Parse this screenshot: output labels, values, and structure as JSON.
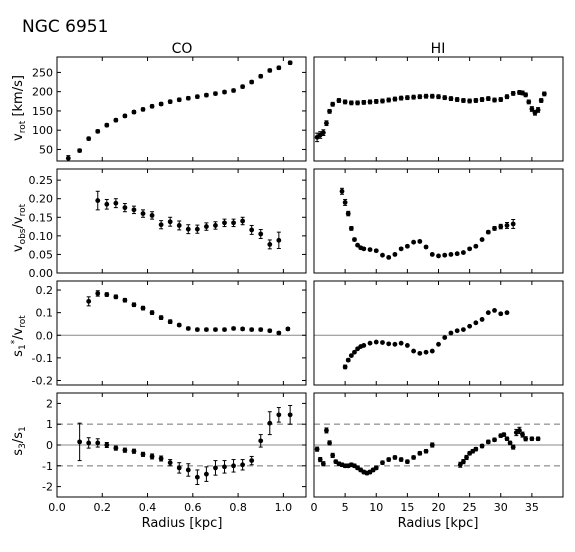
{
  "figure": {
    "title": "NGC 6951",
    "columns": [
      "CO",
      "HI"
    ],
    "xlabel": "Radius [kpc]"
  },
  "chart_data": [
    {
      "type": "scatter",
      "panel": "CO",
      "row": 0,
      "ylabel": "v_rot [km/s]",
      "xlim": [
        0,
        1.1
      ],
      "ylim": [
        20,
        290
      ],
      "xticks": [],
      "yticks": [
        50,
        100,
        150,
        200,
        250
      ],
      "x": [
        0.05,
        0.1,
        0.14,
        0.18,
        0.22,
        0.26,
        0.3,
        0.34,
        0.38,
        0.42,
        0.46,
        0.5,
        0.54,
        0.58,
        0.62,
        0.66,
        0.7,
        0.74,
        0.78,
        0.82,
        0.86,
        0.9,
        0.94,
        0.98,
        1.03
      ],
      "y": [
        27,
        47,
        78,
        97,
        113,
        126,
        137,
        147,
        154,
        162,
        168,
        174,
        179,
        183,
        187,
        191,
        195,
        199,
        203,
        213,
        225,
        240,
        255,
        262,
        275
      ],
      "yerr": [
        7,
        4,
        4,
        4,
        4,
        4,
        4,
        4,
        4,
        4,
        4,
        4,
        4,
        4,
        4,
        4,
        4,
        4,
        4,
        4,
        4,
        4,
        4,
        4,
        4
      ],
      "refs": []
    },
    {
      "type": "scatter",
      "panel": "HI",
      "row": 0,
      "xlim": [
        0,
        40
      ],
      "ylim": [
        70,
        290
      ],
      "xticks": [],
      "yticks": [],
      "x": [
        0.5,
        1,
        1.5,
        2,
        2.5,
        3,
        4,
        5,
        6,
        7,
        8,
        9,
        10,
        11,
        12,
        13,
        14,
        15,
        16,
        17,
        18,
        19,
        20,
        21,
        22,
        23,
        24,
        25,
        26,
        27,
        28,
        29,
        30,
        31,
        32,
        33,
        33.5,
        34,
        34.5,
        35,
        35.5,
        36,
        36.5,
        37
      ],
      "y": [
        120,
        125,
        130,
        150,
        175,
        190,
        198,
        195,
        193,
        193,
        194,
        195,
        196,
        197,
        199,
        201,
        203,
        204,
        205,
        206,
        207,
        207,
        206,
        204,
        202,
        200,
        198,
        197,
        198,
        200,
        202,
        199,
        200,
        206,
        213,
        215,
        214,
        210,
        195,
        180,
        172,
        178,
        198,
        212
      ],
      "yerr": [
        9,
        7,
        6,
        5,
        4,
        4,
        4,
        4,
        4,
        4,
        4,
        4,
        4,
        4,
        4,
        4,
        4,
        4,
        4,
        4,
        4,
        4,
        4,
        4,
        4,
        4,
        4,
        4,
        4,
        4,
        4,
        4,
        4,
        4,
        4,
        4,
        4,
        4,
        4,
        5,
        5,
        5,
        4,
        4
      ],
      "refs": []
    },
    {
      "type": "scatter",
      "panel": "CO",
      "row": 1,
      "ylabel": "v_obs/v_rot",
      "xlim": [
        0,
        1.1
      ],
      "ylim": [
        0.0,
        0.28
      ],
      "xticks": [],
      "yticks": [
        0.0,
        0.05,
        0.1,
        0.15,
        0.2,
        0.25
      ],
      "x": [
        0.18,
        0.22,
        0.26,
        0.3,
        0.34,
        0.38,
        0.42,
        0.46,
        0.5,
        0.54,
        0.58,
        0.62,
        0.66,
        0.7,
        0.74,
        0.78,
        0.82,
        0.86,
        0.9,
        0.94,
        0.98
      ],
      "y": [
        0.195,
        0.185,
        0.188,
        0.176,
        0.17,
        0.16,
        0.155,
        0.13,
        0.138,
        0.128,
        0.118,
        0.118,
        0.125,
        0.128,
        0.135,
        0.135,
        0.14,
        0.116,
        0.105,
        0.077,
        0.088
      ],
      "yerr": [
        0.025,
        0.013,
        0.012,
        0.011,
        0.01,
        0.01,
        0.01,
        0.011,
        0.012,
        0.012,
        0.012,
        0.011,
        0.01,
        0.01,
        0.01,
        0.01,
        0.01,
        0.012,
        0.012,
        0.012,
        0.022
      ],
      "refs": []
    },
    {
      "type": "scatter",
      "panel": "HI",
      "row": 1,
      "xlim": [
        0,
        40
      ],
      "ylim": [
        0.0,
        0.28
      ],
      "xticks": [],
      "yticks": [],
      "x": [
        4.5,
        5,
        5.5,
        6,
        6.5,
        7,
        7.5,
        8,
        9,
        10,
        11,
        12,
        13,
        14,
        15,
        16,
        17,
        18,
        19,
        20,
        21,
        22,
        23,
        24,
        25,
        26,
        27,
        28,
        29,
        30,
        31,
        32
      ],
      "y": [
        0.22,
        0.19,
        0.16,
        0.12,
        0.09,
        0.075,
        0.068,
        0.065,
        0.063,
        0.06,
        0.048,
        0.042,
        0.05,
        0.065,
        0.072,
        0.083,
        0.085,
        0.07,
        0.05,
        0.046,
        0.048,
        0.05,
        0.052,
        0.055,
        0.065,
        0.072,
        0.09,
        0.11,
        0.12,
        0.125,
        0.128,
        0.132
      ],
      "yerr": [
        0.008,
        0.008,
        0.006,
        0.005,
        0.004,
        0.003,
        0.003,
        0.003,
        0.003,
        0.003,
        0.003,
        0.003,
        0.003,
        0.003,
        0.003,
        0.003,
        0.003,
        0.003,
        0.003,
        0.003,
        0.003,
        0.003,
        0.003,
        0.003,
        0.003,
        0.003,
        0.003,
        0.004,
        0.005,
        0.006,
        0.008,
        0.012
      ],
      "refs": []
    },
    {
      "type": "scatter",
      "panel": "CO",
      "row": 2,
      "ylabel": "s1*/v_rot",
      "xlim": [
        0,
        1.1
      ],
      "ylim": [
        -0.22,
        0.24
      ],
      "xticks": [],
      "yticks": [
        -0.2,
        -0.1,
        0.0,
        0.1,
        0.2
      ],
      "x": [
        0.14,
        0.18,
        0.22,
        0.26,
        0.3,
        0.34,
        0.38,
        0.42,
        0.46,
        0.5,
        0.54,
        0.58,
        0.62,
        0.66,
        0.7,
        0.74,
        0.78,
        0.82,
        0.86,
        0.9,
        0.94,
        0.98,
        1.02
      ],
      "y": [
        0.15,
        0.185,
        0.18,
        0.17,
        0.155,
        0.135,
        0.12,
        0.1,
        0.078,
        0.06,
        0.045,
        0.03,
        0.025,
        0.025,
        0.025,
        0.025,
        0.03,
        0.028,
        0.025,
        0.025,
        0.02,
        0.01,
        0.028
      ],
      "yerr": [
        0.02,
        0.012,
        0.008,
        0.008,
        0.008,
        0.008,
        0.008,
        0.008,
        0.008,
        0.008,
        0.006,
        0.006,
        0.006,
        0.006,
        0.006,
        0.006,
        0.006,
        0.006,
        0.006,
        0.006,
        0.006,
        0.006,
        0.006
      ],
      "refs": [
        {
          "y": 0,
          "style": "solid"
        }
      ]
    },
    {
      "type": "scatter",
      "panel": "HI",
      "row": 2,
      "xlim": [
        0,
        40
      ],
      "ylim": [
        -0.22,
        0.24
      ],
      "xticks": [],
      "yticks": [],
      "x": [
        5,
        5.5,
        6,
        6.5,
        7,
        7.5,
        8,
        9,
        10,
        11,
        12,
        13,
        14,
        15,
        16,
        17,
        18,
        19,
        20,
        21,
        22,
        23,
        24,
        25,
        26,
        27,
        28,
        29,
        30,
        31
      ],
      "y": [
        -0.14,
        -0.11,
        -0.09,
        -0.075,
        -0.06,
        -0.05,
        -0.045,
        -0.035,
        -0.03,
        -0.032,
        -0.038,
        -0.04,
        -0.035,
        -0.045,
        -0.07,
        -0.08,
        -0.075,
        -0.07,
        -0.04,
        -0.01,
        0.01,
        0.02,
        0.025,
        0.04,
        0.055,
        0.07,
        0.1,
        0.11,
        0.095,
        0.1
      ],
      "yerr": [
        0.008,
        0.006,
        0.005,
        0.004,
        0.004,
        0.003,
        0.003,
        0.003,
        0.003,
        0.003,
        0.003,
        0.003,
        0.003,
        0.003,
        0.003,
        0.003,
        0.003,
        0.003,
        0.003,
        0.003,
        0.003,
        0.003,
        0.003,
        0.003,
        0.003,
        0.003,
        0.003,
        0.003,
        0.004,
        0.005
      ],
      "refs": [
        {
          "y": 0,
          "style": "solid"
        }
      ]
    },
    {
      "type": "scatter",
      "panel": "CO",
      "row": 3,
      "ylabel": "s3/s1",
      "xlim": [
        0,
        1.1
      ],
      "ylim": [
        -2.5,
        2.5
      ],
      "xticks": [
        0.0,
        0.2,
        0.4,
        0.6,
        0.8,
        1.0
      ],
      "yticks": [
        -2,
        -1,
        0,
        1,
        2
      ],
      "x": [
        0.1,
        0.14,
        0.18,
        0.22,
        0.26,
        0.3,
        0.34,
        0.38,
        0.42,
        0.46,
        0.5,
        0.54,
        0.58,
        0.62,
        0.66,
        0.7,
        0.74,
        0.78,
        0.82,
        0.86,
        0.9,
        0.94,
        0.98,
        1.03
      ],
      "y": [
        0.15,
        0.1,
        0.1,
        0.0,
        -0.15,
        -0.25,
        -0.3,
        -0.45,
        -0.55,
        -0.65,
        -0.85,
        -1.1,
        -1.2,
        -1.55,
        -1.4,
        -1.1,
        -1.05,
        -1.0,
        -0.95,
        -0.75,
        0.2,
        1.05,
        1.45,
        1.45
      ],
      "yerr": [
        0.9,
        0.25,
        0.2,
        0.12,
        0.1,
        0.1,
        0.1,
        0.1,
        0.12,
        0.12,
        0.15,
        0.25,
        0.3,
        0.35,
        0.35,
        0.35,
        0.3,
        0.3,
        0.25,
        0.2,
        0.3,
        0.55,
        0.35,
        0.45
      ],
      "refs": [
        {
          "y": 0,
          "style": "solid"
        },
        {
          "y": 1,
          "style": "dashed"
        },
        {
          "y": -1,
          "style": "dashed"
        }
      ]
    },
    {
      "type": "scatter",
      "panel": "HI",
      "row": 3,
      "xlim": [
        0,
        40
      ],
      "ylim": [
        -2.5,
        2.5
      ],
      "xticks": [
        0,
        5,
        10,
        15,
        20,
        25,
        30,
        35
      ],
      "yticks": [],
      "x": [
        0.5,
        1,
        1.5,
        2,
        2.5,
        3,
        3.5,
        4,
        4.5,
        5,
        5.5,
        6,
        6.5,
        7,
        7.5,
        8,
        8.5,
        9,
        9.5,
        10,
        11,
        12,
        13,
        14,
        15,
        16,
        17,
        18,
        19,
        23.5,
        24,
        24.5,
        25,
        25.5,
        26,
        27,
        28,
        29,
        30,
        30.5,
        31,
        31.5,
        32,
        32.5,
        33,
        33.5,
        34,
        35,
        36
      ],
      "y": [
        -0.2,
        -0.7,
        -0.9,
        0.7,
        0.1,
        -0.5,
        -0.8,
        -0.9,
        -0.95,
        -1.0,
        -1.0,
        -0.95,
        -1.0,
        -1.1,
        -1.2,
        -1.3,
        -1.35,
        -1.3,
        -1.2,
        -1.1,
        -0.85,
        -0.7,
        -0.6,
        -0.7,
        -0.8,
        -0.6,
        -0.4,
        -0.3,
        0.0,
        -0.95,
        -0.8,
        -0.6,
        -0.4,
        -0.3,
        -0.2,
        -0.05,
        0.15,
        0.25,
        0.45,
        0.5,
        0.3,
        0.1,
        -0.1,
        0.6,
        0.7,
        0.5,
        0.3,
        0.3,
        0.3
      ],
      "yerr": [
        0.1,
        0.1,
        0.1,
        0.12,
        0.1,
        0.1,
        0.08,
        0.08,
        0.08,
        0.08,
        0.08,
        0.08,
        0.08,
        0.08,
        0.08,
        0.08,
        0.08,
        0.08,
        0.08,
        0.08,
        0.08,
        0.08,
        0.08,
        0.08,
        0.08,
        0.08,
        0.08,
        0.08,
        0.1,
        0.12,
        0.1,
        0.1,
        0.08,
        0.08,
        0.08,
        0.08,
        0.08,
        0.08,
        0.08,
        0.08,
        0.08,
        0.08,
        0.1,
        0.15,
        0.15,
        0.12,
        0.1,
        0.08,
        0.08
      ],
      "refs": [
        {
          "y": 0,
          "style": "solid"
        },
        {
          "y": 1,
          "style": "dashed"
        },
        {
          "y": -1,
          "style": "dashed"
        }
      ]
    }
  ]
}
